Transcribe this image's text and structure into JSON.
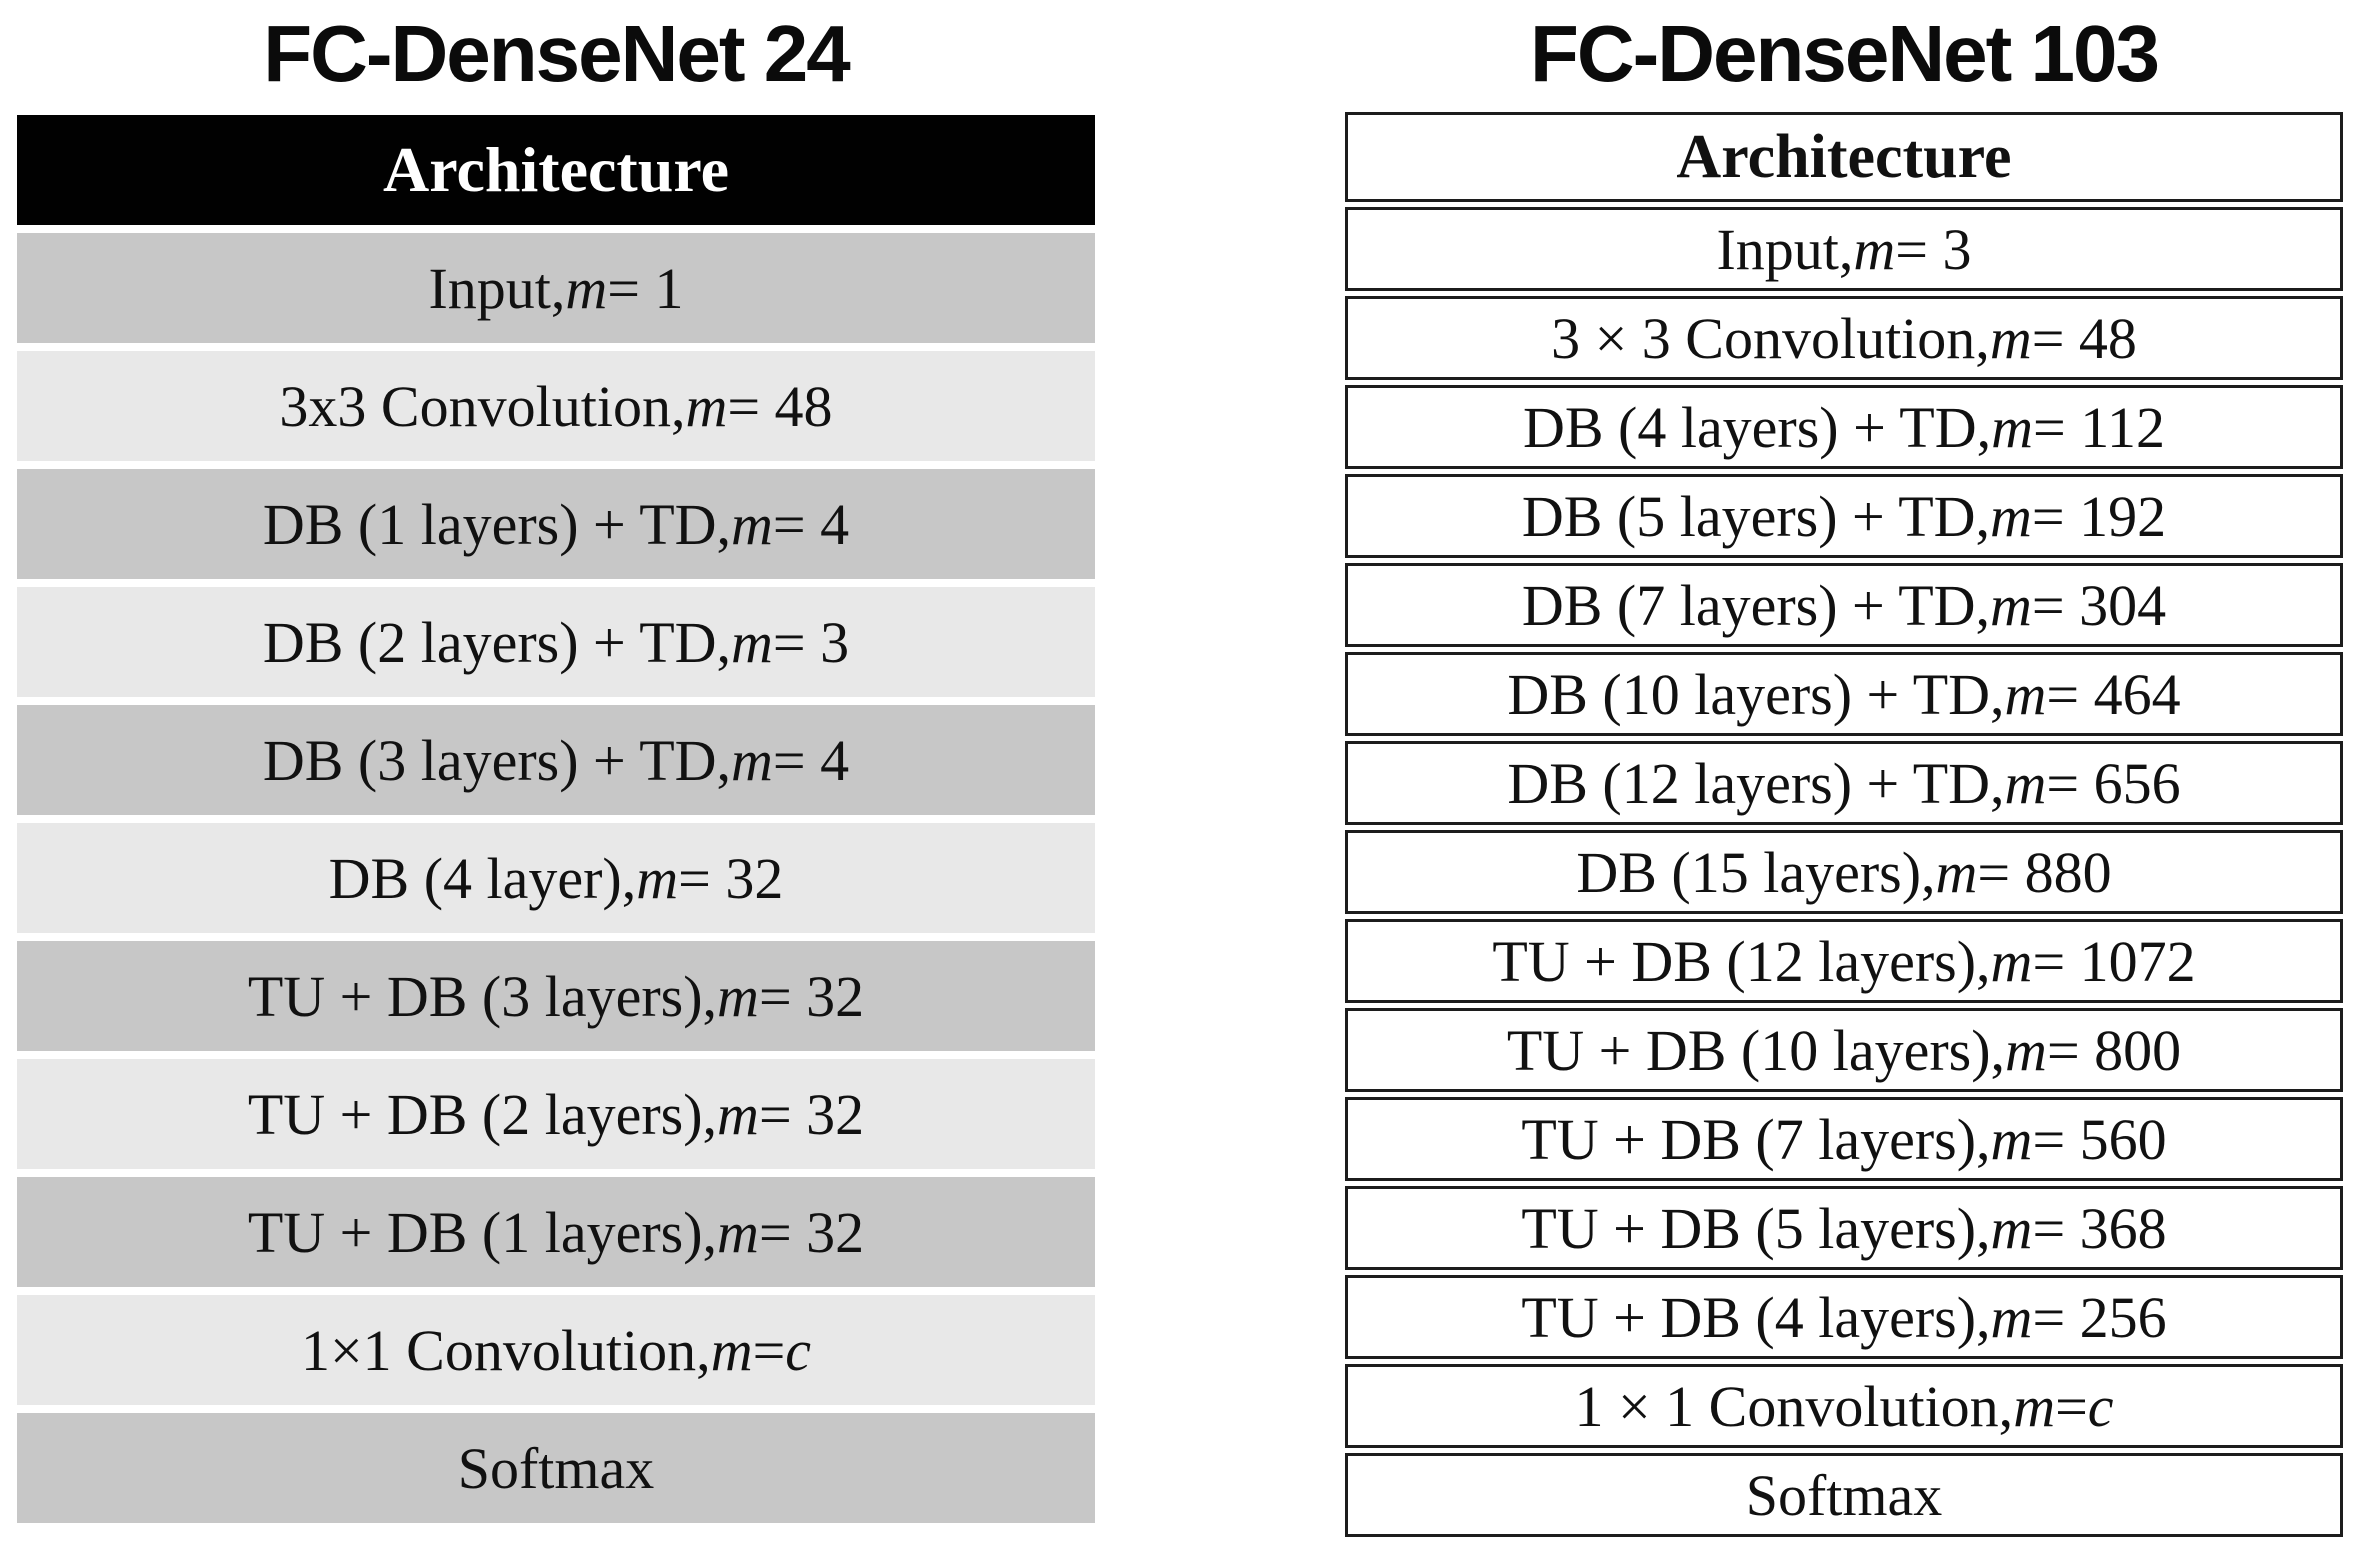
{
  "colors": {
    "page_bg": "#ffffff",
    "left_header_bg": "#010101",
    "left_header_text": "#ffffff",
    "row_dark": "#c7c7c7",
    "row_light": "#e8e8e8",
    "right_table_border": "#1c1c1c",
    "text": "#111111"
  },
  "left_panel": {
    "title": "FC-DenseNet 24",
    "header": "Architecture",
    "rows": [
      {
        "pre": "Input, ",
        "var": "m",
        "mid": " = 1",
        "var2": ""
      },
      {
        "pre": "3x3 Convolution, ",
        "var": "m",
        "mid": " = 48",
        "var2": ""
      },
      {
        "pre": "DB (1 layers) + TD, ",
        "var": "m",
        "mid": " = 4",
        "var2": ""
      },
      {
        "pre": "DB (2 layers) + TD, ",
        "var": "m",
        "mid": " = 3",
        "var2": ""
      },
      {
        "pre": "DB (3 layers) + TD, ",
        "var": "m",
        "mid": " = 4",
        "var2": ""
      },
      {
        "pre": "DB (4 layer), ",
        "var": "m",
        "mid": " = 32",
        "var2": ""
      },
      {
        "pre": "TU + DB (3 layers), ",
        "var": "m",
        "mid": " = 32",
        "var2": ""
      },
      {
        "pre": "TU + DB (2 layers), ",
        "var": "m",
        "mid": " = 32",
        "var2": ""
      },
      {
        "pre": "TU + DB (1 layers), ",
        "var": "m",
        "mid": " = 32",
        "var2": ""
      },
      {
        "pre": "1×1 Convolution, ",
        "var": "m",
        "mid": " = ",
        "var2": "c"
      },
      {
        "pre": "Softmax",
        "var": "",
        "mid": "",
        "var2": ""
      }
    ]
  },
  "right_panel": {
    "title": "FC-DenseNet 103",
    "header": "Architecture",
    "rows": [
      {
        "pre": "Input, ",
        "var": "m",
        "mid": " = 3",
        "var2": ""
      },
      {
        "pre": "3 × 3 Convolution, ",
        "var": "m",
        "mid": " = 48",
        "var2": ""
      },
      {
        "pre": "DB (4 layers) + TD, ",
        "var": "m",
        "mid": " = 112",
        "var2": ""
      },
      {
        "pre": "DB (5 layers) + TD, ",
        "var": "m",
        "mid": " = 192",
        "var2": ""
      },
      {
        "pre": "DB (7 layers) + TD, ",
        "var": "m",
        "mid": " = 304",
        "var2": ""
      },
      {
        "pre": "DB (10 layers) + TD, ",
        "var": "m",
        "mid": " = 464",
        "var2": ""
      },
      {
        "pre": "DB (12 layers) + TD, ",
        "var": "m",
        "mid": " = 656",
        "var2": ""
      },
      {
        "pre": "DB (15 layers), ",
        "var": "m",
        "mid": " = 880",
        "var2": ""
      },
      {
        "pre": "TU + DB (12 layers), ",
        "var": "m",
        "mid": " = 1072",
        "var2": ""
      },
      {
        "pre": "TU + DB (10 layers), ",
        "var": "m",
        "mid": " = 800",
        "var2": ""
      },
      {
        "pre": "TU + DB (7 layers), ",
        "var": "m",
        "mid": " = 560",
        "var2": ""
      },
      {
        "pre": "TU + DB (5 layers), ",
        "var": "m",
        "mid": " = 368",
        "var2": ""
      },
      {
        "pre": "TU + DB (4 layers), ",
        "var": "m",
        "mid": " = 256",
        "var2": ""
      },
      {
        "pre": "1 × 1 Convolution, ",
        "var": "m",
        "mid": " = ",
        "var2": "c"
      },
      {
        "pre": "Softmax",
        "var": "",
        "mid": "",
        "var2": ""
      }
    ]
  }
}
